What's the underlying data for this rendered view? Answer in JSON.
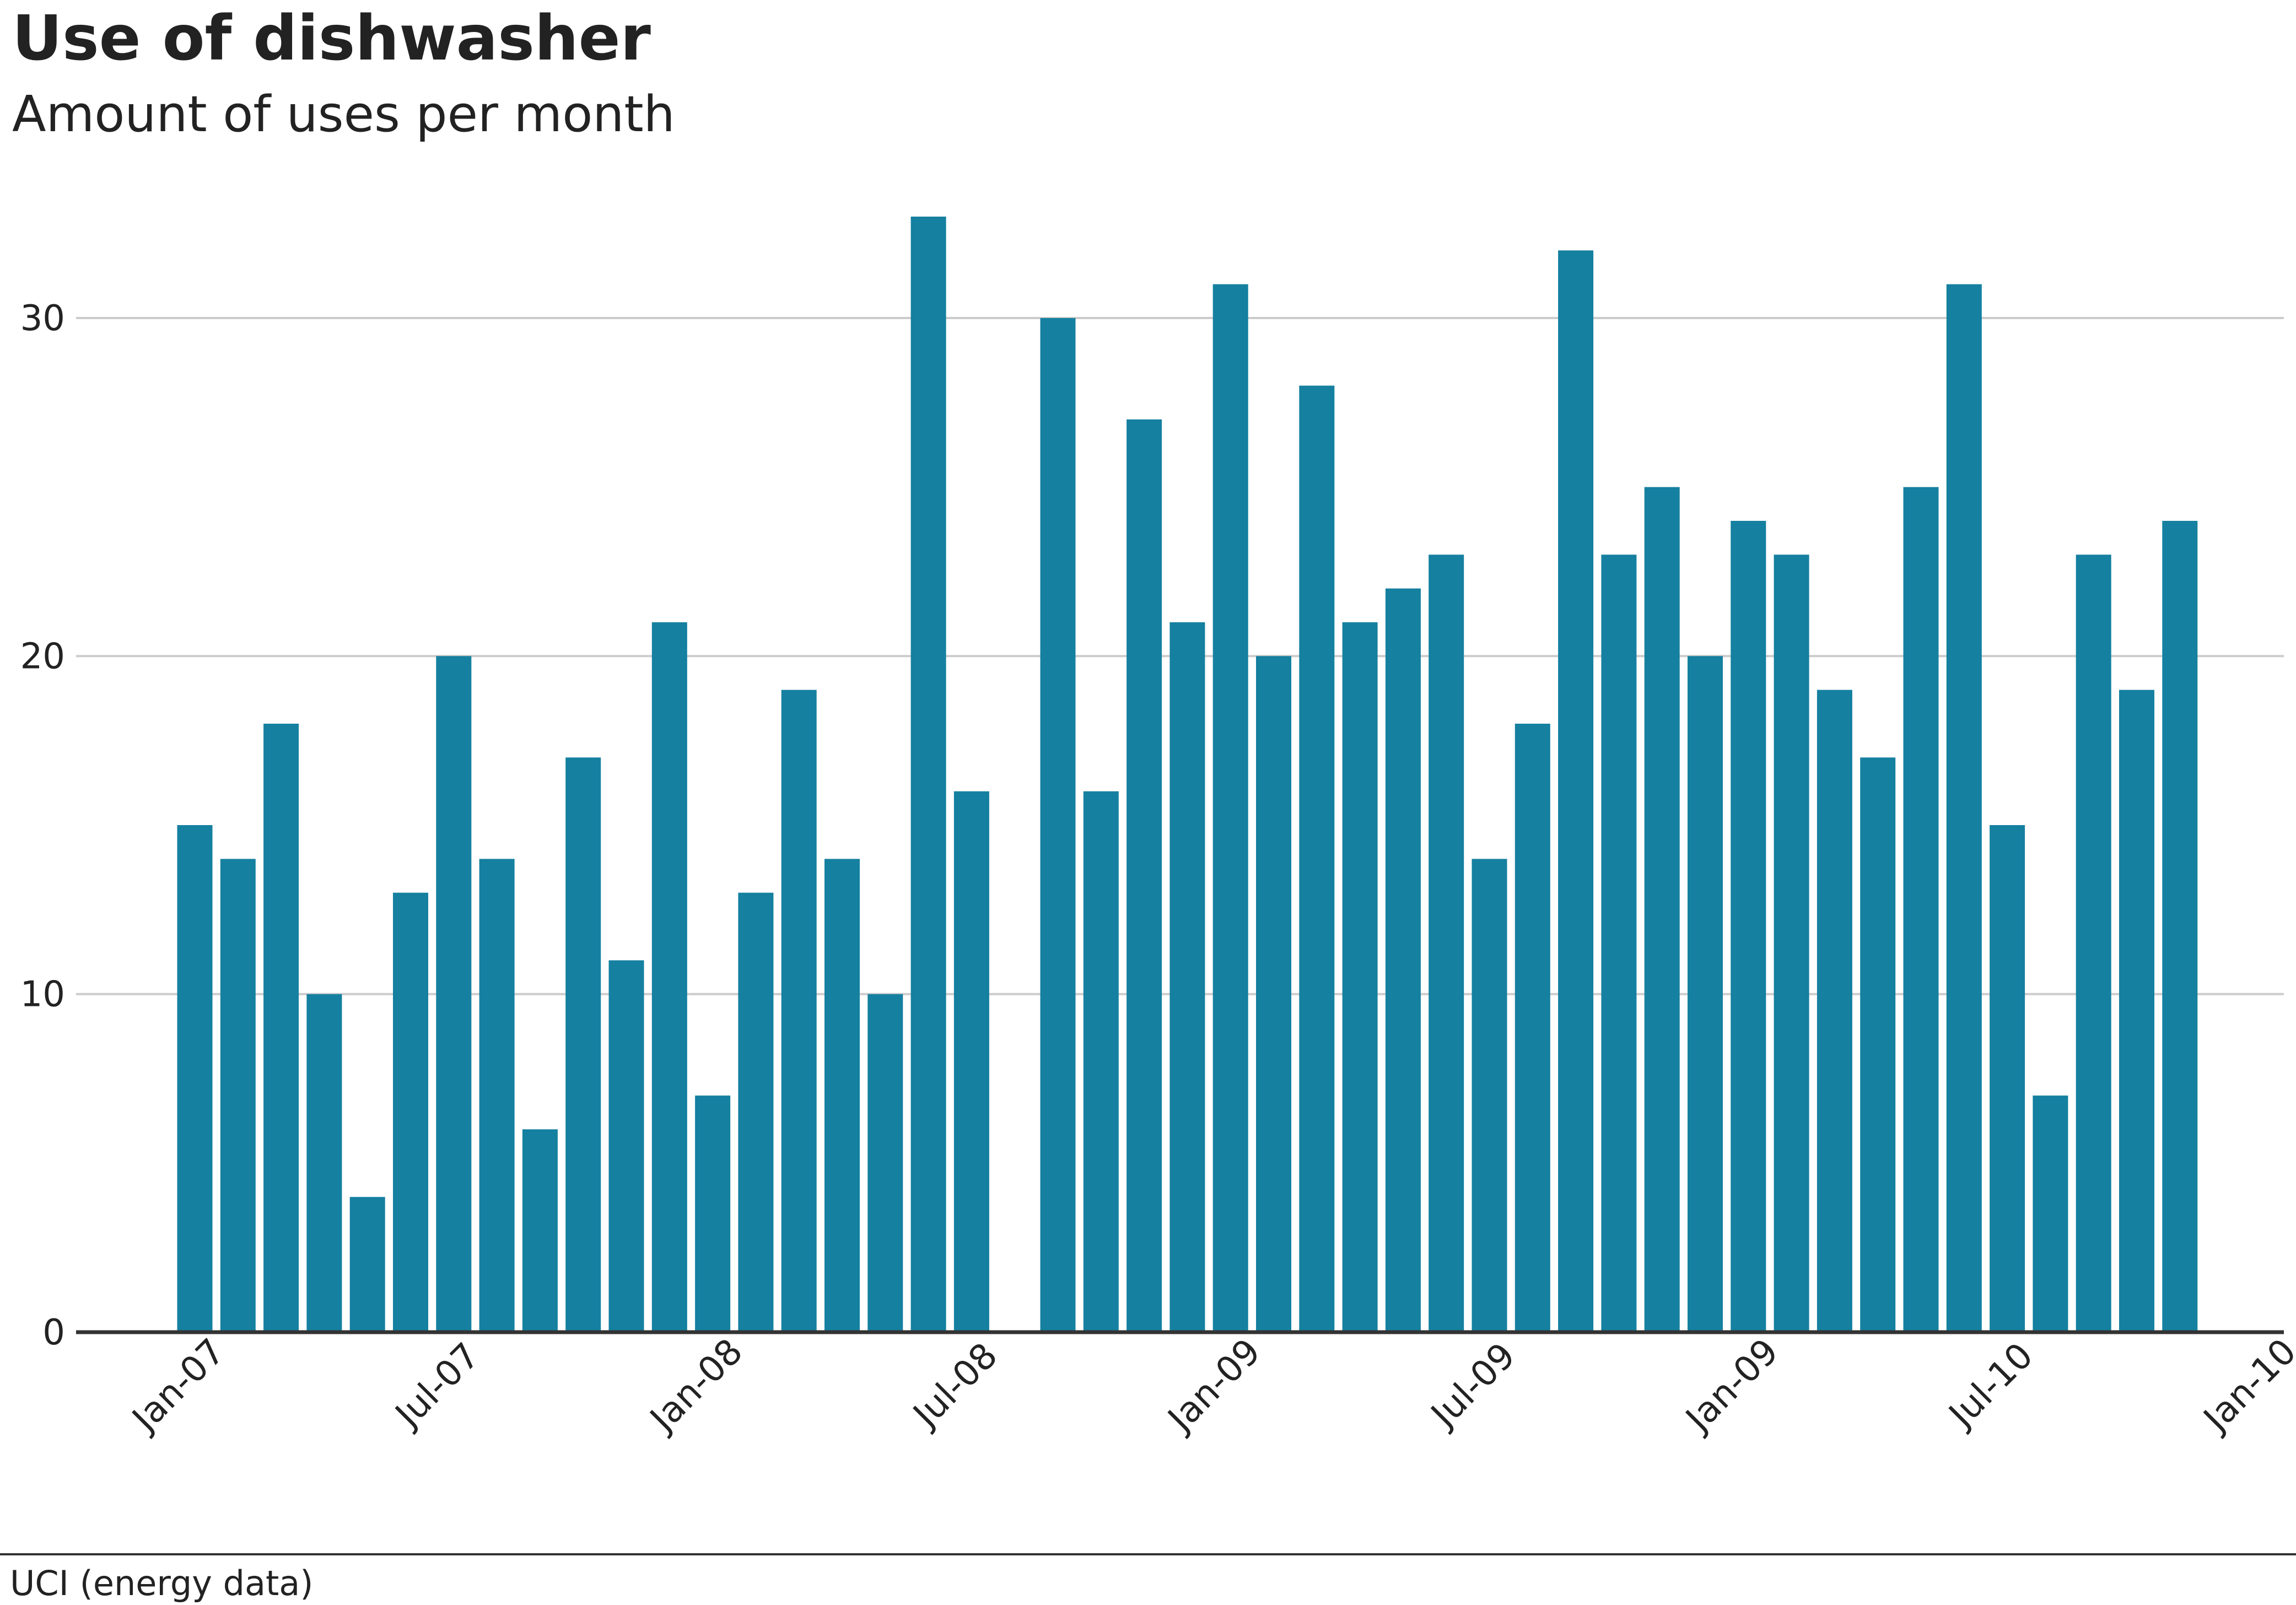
{
  "chart_data": {
    "type": "bar",
    "title": "Use of dishwasher",
    "subtitle": "Amount of uses per month",
    "source": "UCI (energy data)",
    "xlabel": "",
    "ylabel": "",
    "ylim": [
      0,
      33
    ],
    "y_ticks": [
      0,
      10,
      20,
      30
    ],
    "x_tick_labels": [
      "Jan-07",
      "Jul-07",
      "Jan-08",
      "Jul-08",
      "Jan-09",
      "Jul-09",
      "Jan-09",
      "Jul-10",
      "Jan-10"
    ],
    "x_tick_month_index": [
      0,
      6,
      12,
      18,
      24,
      30,
      36,
      42,
      48
    ],
    "grid": "horizontal",
    "bar_color": "#1580a0",
    "series": [
      {
        "values": [
          15,
          14,
          18,
          10,
          4,
          13,
          20,
          14,
          6,
          17,
          11,
          21,
          7,
          13,
          19,
          14,
          10,
          33,
          16,
          null,
          30,
          16,
          27,
          21,
          31,
          20,
          28,
          21,
          22,
          23,
          14,
          18,
          32,
          23,
          25,
          20,
          24,
          23,
          19,
          17,
          25,
          31,
          15,
          7,
          23,
          19,
          24
        ]
      }
    ]
  }
}
